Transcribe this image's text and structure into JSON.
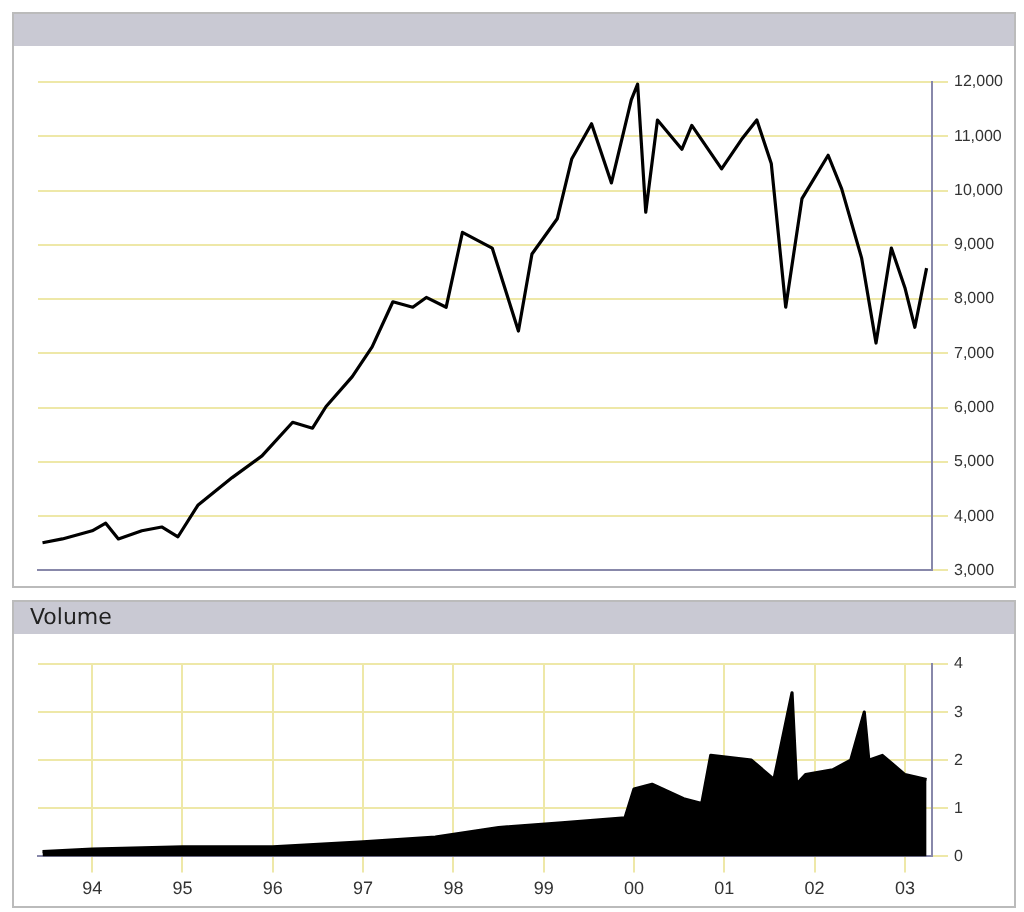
{
  "chart_data": [
    {
      "type": "line",
      "x": [
        1993.45,
        1993.67,
        1994.0,
        1994.15,
        1994.29,
        1994.55,
        1994.77,
        1994.95,
        1995.17,
        1995.55,
        1995.88,
        1996.22,
        1996.44,
        1996.59,
        1996.88,
        1997.1,
        1997.33,
        1997.55,
        1997.7,
        1997.92,
        1998.1,
        1998.43,
        1998.72,
        1998.87,
        1999.15,
        1999.31,
        1999.53,
        1999.75,
        1999.97,
        2000.04,
        2000.13,
        2000.26,
        2000.53,
        2000.64,
        2000.97,
        2001.19,
        2001.36,
        2001.52,
        2001.68,
        2001.86,
        2002.15,
        2002.3,
        2002.52,
        2002.68,
        2002.85,
        2003.0,
        2003.11,
        2003.24
      ],
      "values": [
        3510,
        3580,
        3730,
        3870,
        3580,
        3730,
        3800,
        3620,
        4200,
        4710,
        5110,
        5730,
        5620,
        6020,
        6570,
        7120,
        7950,
        7850,
        8030,
        7850,
        9230,
        8940,
        7410,
        8830,
        9480,
        10580,
        11230,
        10140,
        11670,
        11960,
        9600,
        11300,
        10760,
        11200,
        10400,
        10940,
        11300,
        10500,
        7850,
        9850,
        10650,
        10030,
        8760,
        7190,
        8940,
        8210,
        7480,
        8570
      ],
      "color": "#000000",
      "xlim": [
        1993.4,
        2003.3
      ],
      "xticks": [
        {
          "value": 1994,
          "label": null
        },
        {
          "value": 1995,
          "label": null
        },
        {
          "value": 1996,
          "label": null
        },
        {
          "value": 1997,
          "label": null
        },
        {
          "value": 1998,
          "label": null
        },
        {
          "value": 1999,
          "label": null
        },
        {
          "value": 2000,
          "label": null
        },
        {
          "value": 2001,
          "label": null
        },
        {
          "value": 2002,
          "label": null
        },
        {
          "value": 2003,
          "label": null
        }
      ],
      "ylim": [
        3000,
        12000
      ],
      "yticks": [
        {
          "value": 3000,
          "label": "3,000"
        },
        {
          "value": 4000,
          "label": "4,000"
        },
        {
          "value": 5000,
          "label": "5,000"
        },
        {
          "value": 6000,
          "label": "6,000"
        },
        {
          "value": 7000,
          "label": "7,000"
        },
        {
          "value": 8000,
          "label": "8,000"
        },
        {
          "value": 9000,
          "label": "9,000"
        },
        {
          "value": 10000,
          "label": "10,000"
        },
        {
          "value": 11000,
          "label": "11,000"
        },
        {
          "value": 12000,
          "label": "12,000"
        }
      ],
      "grid": true,
      "tick_labels": "y"
    },
    {
      "type": "area",
      "title": "Volume",
      "x": [
        1993.45,
        1994.0,
        1995.0,
        1996.0,
        1997.0,
        1997.8,
        1998.5,
        1999.2,
        1999.9,
        2000.0,
        2000.2,
        2000.55,
        2000.75,
        2000.85,
        2001.3,
        2001.55,
        2001.75,
        2001.8,
        2001.9,
        2002.2,
        2002.4,
        2002.55,
        2002.6,
        2002.75,
        2003.0,
        2003.24
      ],
      "values": [
        0.1,
        0.15,
        0.2,
        0.2,
        0.3,
        0.4,
        0.6,
        0.7,
        0.8,
        1.4,
        1.5,
        1.2,
        1.1,
        2.1,
        2.0,
        1.6,
        3.4,
        1.5,
        1.7,
        1.8,
        2.0,
        3.0,
        2.0,
        2.1,
        1.7,
        1.6
      ],
      "color": "#000000",
      "xlim": [
        1993.4,
        2003.3
      ],
      "xticks": [
        {
          "value": 1994,
          "label": "94"
        },
        {
          "value": 1995,
          "label": "95"
        },
        {
          "value": 1996,
          "label": "96"
        },
        {
          "value": 1997,
          "label": "97"
        },
        {
          "value": 1998,
          "label": "98"
        },
        {
          "value": 1999,
          "label": "99"
        },
        {
          "value": 2000,
          "label": "00"
        },
        {
          "value": 2001,
          "label": "01"
        },
        {
          "value": 2002,
          "label": "02"
        },
        {
          "value": 2003,
          "label": "03"
        }
      ],
      "ylim": [
        0,
        4
      ],
      "yticks": [
        0,
        1,
        2,
        3,
        4
      ],
      "grid": true
    }
  ]
}
